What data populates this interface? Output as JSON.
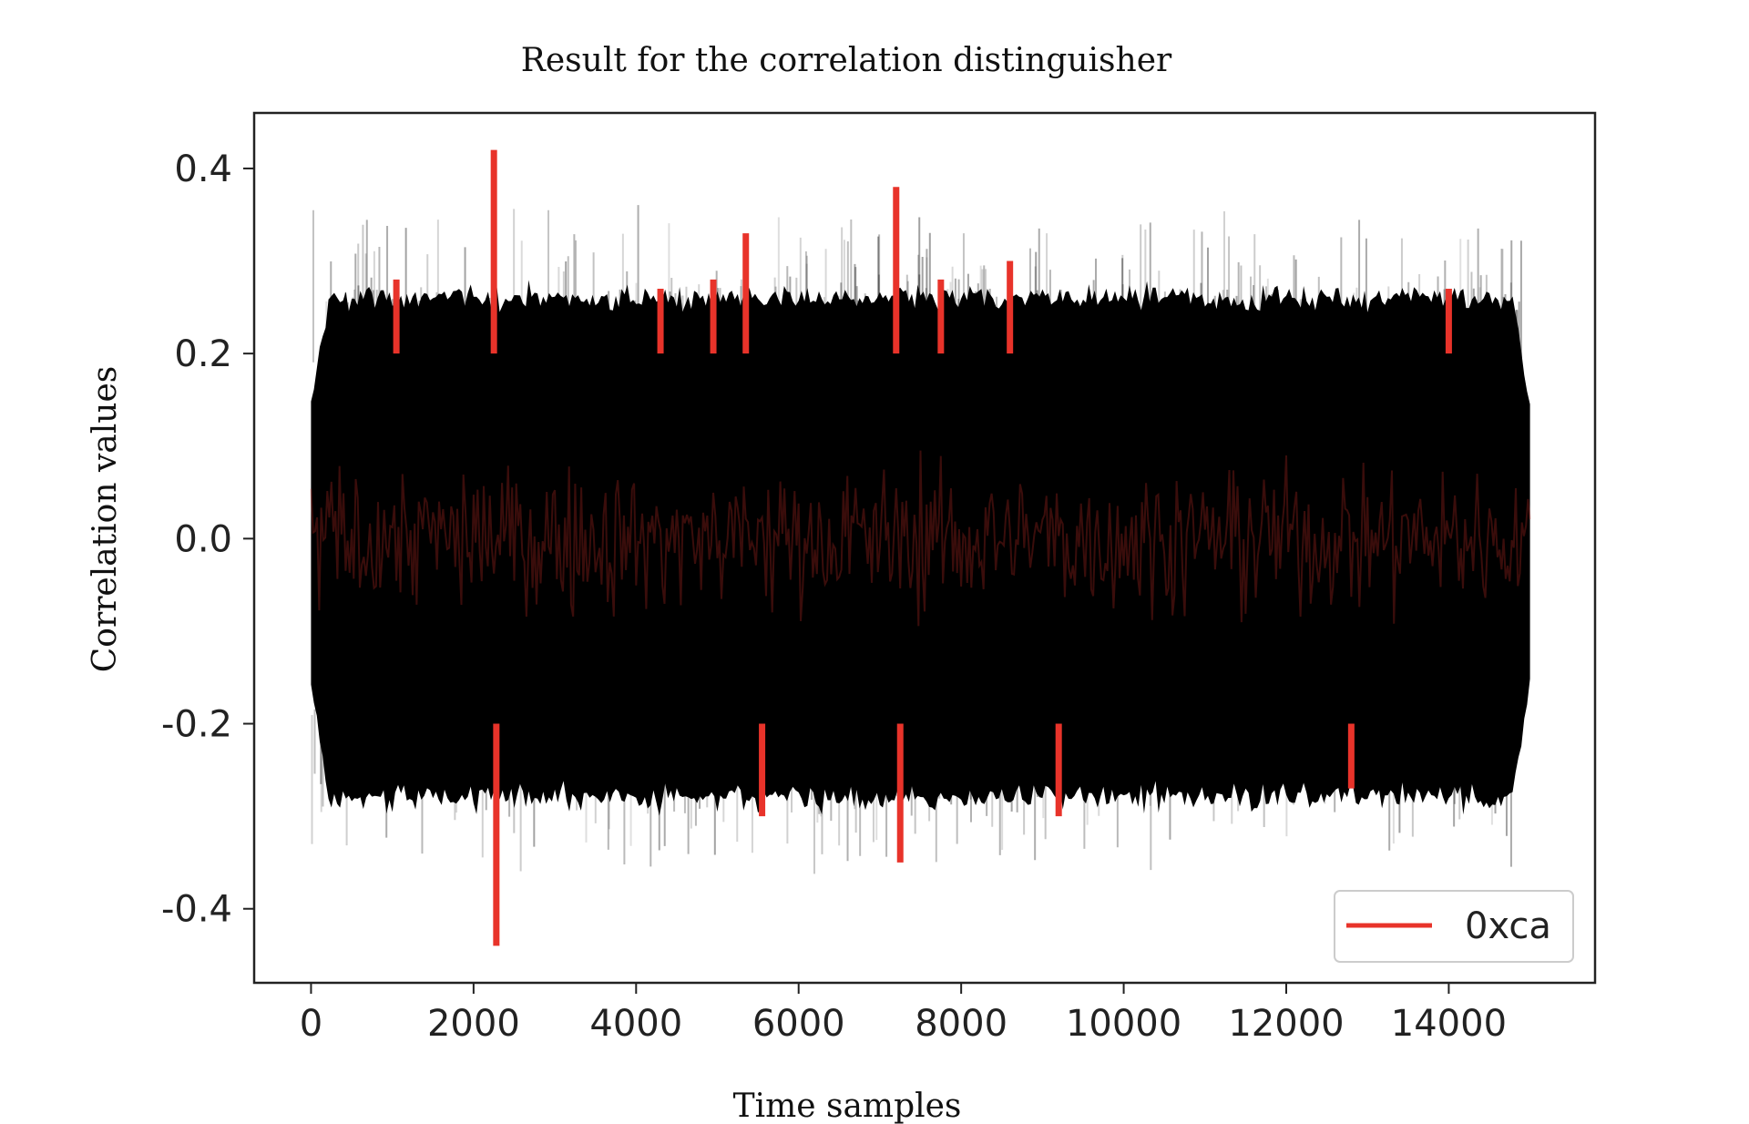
{
  "chart_data": {
    "type": "line",
    "title": "Result for the correlation distinguisher",
    "xlabel": "Time samples",
    "ylabel": "Correlation values",
    "xlim": [
      -700,
      15800
    ],
    "ylim": [
      -0.48,
      0.46
    ],
    "xticks": [
      0,
      2000,
      4000,
      6000,
      8000,
      10000,
      12000,
      14000
    ],
    "yticks": [
      -0.4,
      -0.2,
      0.0,
      0.2,
      0.4
    ],
    "grid": false,
    "legend": {
      "position": "bottom-right",
      "entries": [
        "0xca"
      ]
    },
    "series": [
      {
        "name": "0xca",
        "color": "#e8332a",
        "x_range": [
          0,
          15000
        ],
        "spikes": [
          {
            "x": 2250,
            "y": 0.42
          },
          {
            "x": 2280,
            "y": -0.44
          },
          {
            "x": 7200,
            "y": 0.38
          },
          {
            "x": 7250,
            "y": -0.35
          },
          {
            "x": 5350,
            "y": 0.33
          },
          {
            "x": 5550,
            "y": -0.3
          },
          {
            "x": 8600,
            "y": 0.3
          },
          {
            "x": 9200,
            "y": -0.3
          },
          {
            "x": 1050,
            "y": 0.28
          },
          {
            "x": 14000,
            "y": 0.27
          },
          {
            "x": 12800,
            "y": -0.27
          },
          {
            "x": 4300,
            "y": 0.27
          },
          {
            "x": 4950,
            "y": 0.28
          },
          {
            "x": 7750,
            "y": 0.28
          }
        ]
      }
    ],
    "background_traces": {
      "color": "#000000",
      "description_range": [
        0,
        15000
      ],
      "typical_amplitude": 0.26,
      "max_amplitude": 0.43
    }
  }
}
